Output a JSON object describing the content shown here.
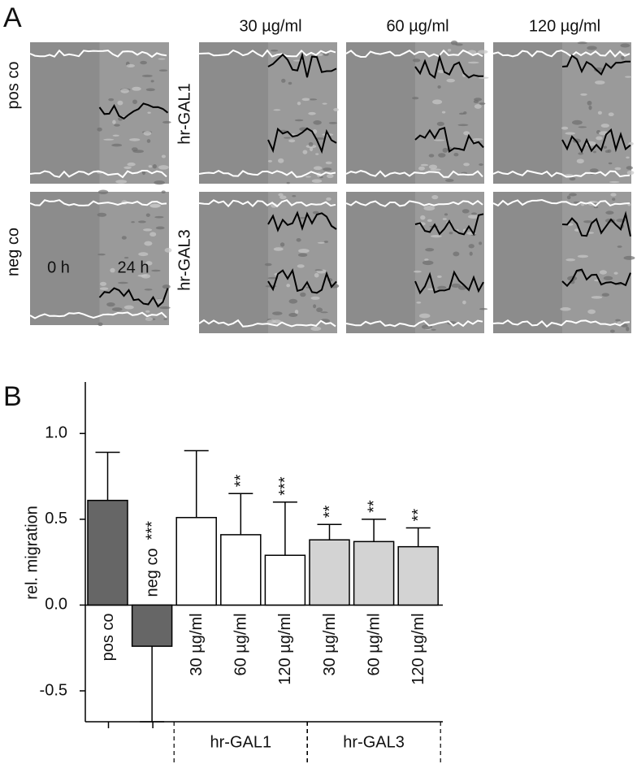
{
  "panel_a": {
    "label": "A",
    "concentrations": [
      "30 µg/ml",
      "60 µg/ml",
      "120 µg/ml"
    ],
    "controls": [
      "pos co",
      "neg co"
    ],
    "treatments": [
      "hr-GAL1",
      "hr-GAL3"
    ],
    "times": [
      "0 h",
      "24 h"
    ]
  },
  "chart_data": {
    "type": "bar",
    "panel_label": "B",
    "ylabel": "rel. migration",
    "categories": [
      "pos co",
      "neg co",
      "30 µg/ml",
      "60 µg/ml",
      "120 µg/ml",
      "30 µg/ml",
      "60 µg/ml",
      "120 µg/ml"
    ],
    "category_groups": [
      null,
      null,
      "hr-GAL1",
      "hr-GAL1",
      "hr-GAL1",
      "hr-GAL3",
      "hr-GAL3",
      "hr-GAL3"
    ],
    "values": [
      0.61,
      -0.24,
      0.51,
      0.41,
      0.29,
      0.38,
      0.37,
      0.34
    ],
    "errors": [
      0.28,
      0.44,
      0.39,
      0.24,
      0.31,
      0.09,
      0.13,
      0.11
    ],
    "significance": [
      null,
      "***",
      null,
      "**",
      "***",
      "**",
      "**",
      "**"
    ],
    "colors": [
      "#666666",
      "#666666",
      "#ffffff",
      "#ffffff",
      "#ffffff",
      "#d3d3d3",
      "#d3d3d3",
      "#d3d3d3"
    ],
    "ylim": [
      -0.68,
      1.3
    ],
    "yticks": [
      -0.5,
      {
        "value": 0,
        "label": "0.0"
      },
      0.5,
      {
        "value": 1,
        "label": "1.0"
      }
    ]
  }
}
